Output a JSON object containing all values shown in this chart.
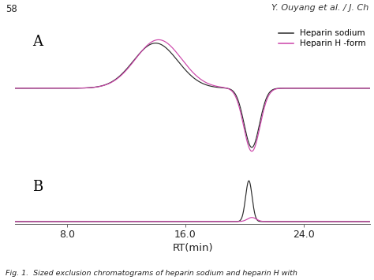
{
  "title_text": "58",
  "author_text": "Y. Ouyang et al. / J. Ch",
  "xlabel": "RT(min)",
  "xticks": [
    8.0,
    16.0,
    24.0
  ],
  "xmin": 4.5,
  "xmax": 28.5,
  "legend_labels": [
    "Heparin sodium",
    "Heparin H -form"
  ],
  "legend_colors": [
    "#2a2a2a",
    "#cc44aa"
  ],
  "panel_a_label": "A",
  "panel_b_label": "B",
  "background_color": "#ffffff",
  "color_black": "#2a2a2a",
  "color_magenta": "#cc44aa",
  "fig_caption": "Fig. 1.  Sized exclusion chromatograms of heparin sodium and heparin H with"
}
